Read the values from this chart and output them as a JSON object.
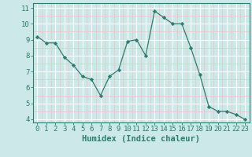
{
  "x": [
    0,
    1,
    2,
    3,
    4,
    5,
    6,
    7,
    8,
    9,
    10,
    11,
    12,
    13,
    14,
    15,
    16,
    17,
    18,
    19,
    20,
    21,
    22,
    23
  ],
  "y": [
    9.2,
    8.8,
    8.8,
    7.9,
    7.4,
    6.7,
    6.5,
    5.5,
    6.7,
    7.1,
    8.9,
    9.0,
    8.0,
    10.8,
    10.4,
    10.0,
    10.0,
    8.5,
    6.8,
    4.8,
    4.5,
    4.5,
    4.3,
    4.0
  ],
  "xlabel": "Humidex (Indice chaleur)",
  "xlim": [
    -0.5,
    23.5
  ],
  "ylim": [
    3.8,
    11.3
  ],
  "yticks": [
    4,
    5,
    6,
    7,
    8,
    9,
    10,
    11
  ],
  "xticks": [
    0,
    1,
    2,
    3,
    4,
    5,
    6,
    7,
    8,
    9,
    10,
    11,
    12,
    13,
    14,
    15,
    16,
    17,
    18,
    19,
    20,
    21,
    22,
    23
  ],
  "line_color": "#2e7d6e",
  "marker_color": "#2e7d6e",
  "bg_color": "#cce8e8",
  "grid_major_color": "#ffffff",
  "grid_minor_color": "#e8c8c8",
  "axis_color": "#2e7d6e",
  "tick_color": "#2e7d6e",
  "label_color": "#2e7d6e",
  "xlabel_fontsize": 7.5,
  "tick_fontsize": 6.5
}
